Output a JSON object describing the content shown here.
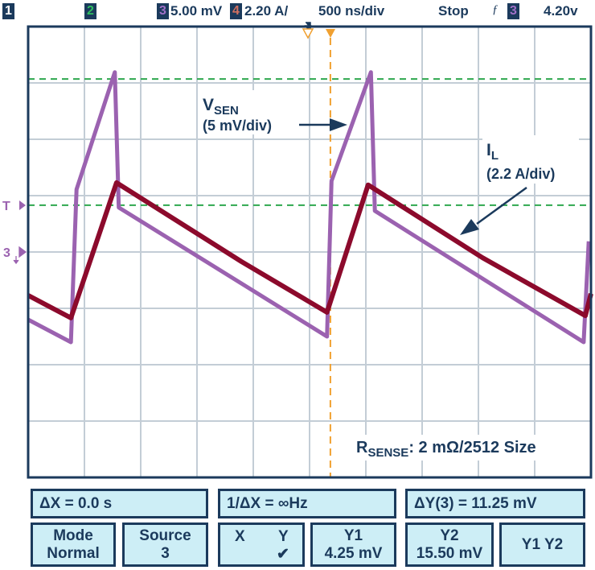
{
  "header": {
    "ch1": "1",
    "ch2": "2",
    "ch3": "3",
    "ch3_scale": "5.00 mV",
    "ch4": "4",
    "ch4_scale": "2.20 A/",
    "timebase": "500 ns/div",
    "run_state": "Stop",
    "trigger_slope": "ƒ",
    "trigger_source": "3",
    "trigger_level": "4.20v"
  },
  "colors": {
    "frame": "#1b3a5c",
    "grid": "#c3cdd6",
    "vsen": "#9b62b0",
    "il": "#8c0a2c",
    "cursor": "#2fa84f",
    "trigger_cursor": "#f0a030",
    "button_bg": "#cdeef6"
  },
  "markers": {
    "trigger": "T",
    "channel3": "3"
  },
  "chart_data": {
    "type": "line",
    "x_divisions": 10,
    "y_divisions": 8,
    "xlim": [
      0,
      10
    ],
    "ylim": [
      0,
      8
    ],
    "grid": true,
    "timebase": "500 ns/div",
    "series": [
      {
        "name": "VSEN",
        "scale": "(5 mV/div)",
        "color": "#9b62b0",
        "x": [
          0,
          0.76,
          0.86,
          1.54,
          1.61,
          5.31,
          5.39,
          6.09,
          6.16,
          9.87,
          9.96
        ],
        "y": [
          2.8,
          2.4,
          5.11,
          7.19,
          4.79,
          2.5,
          5.26,
          7.19,
          4.73,
          2.4,
          4.19
        ]
      },
      {
        "name": "IL",
        "scale": "(2.2 A/div)",
        "color": "#8c0a2c",
        "x": [
          0,
          0.76,
          1.57,
          3.79,
          5.31,
          6.04,
          8.07,
          9.9,
          10
        ],
        "y": [
          3.23,
          2.83,
          5.23,
          3.83,
          2.93,
          5.19,
          3.9,
          2.87,
          3.26
        ]
      }
    ],
    "cursors_y_div": [
      7.07,
      4.83
    ],
    "trigger_position_div": 5.37,
    "annotations": {
      "vsen_label_main": "V",
      "vsen_label_sub": "SEN",
      "vsen_scale": "(5 mV/div)",
      "il_label_main": "I",
      "il_label_sub": "L",
      "il_scale": "(2.2 A/div)",
      "rsense_main": "R",
      "rsense_sub": "SENSE",
      "rsense_rest": ": 2 mΩ/2512 Size"
    }
  },
  "measurements": {
    "delta_x": "ΔX = 0.0 s",
    "inv_delta_x": "1/ΔX = ∞Hz",
    "delta_y": "ΔY(3) = 11.25 mV"
  },
  "softkeys": {
    "mode_label": "Mode",
    "mode_value": "Normal",
    "source_label": "Source",
    "source_value": "3",
    "xy_x": "X",
    "xy_y": "Y",
    "xy_check": "✔",
    "y1_label": "Y1",
    "y1_value": "4.25 mV",
    "y2_label": "Y2",
    "y2_value": "15.50 mV",
    "y1y2_label": "Y1 Y2"
  }
}
